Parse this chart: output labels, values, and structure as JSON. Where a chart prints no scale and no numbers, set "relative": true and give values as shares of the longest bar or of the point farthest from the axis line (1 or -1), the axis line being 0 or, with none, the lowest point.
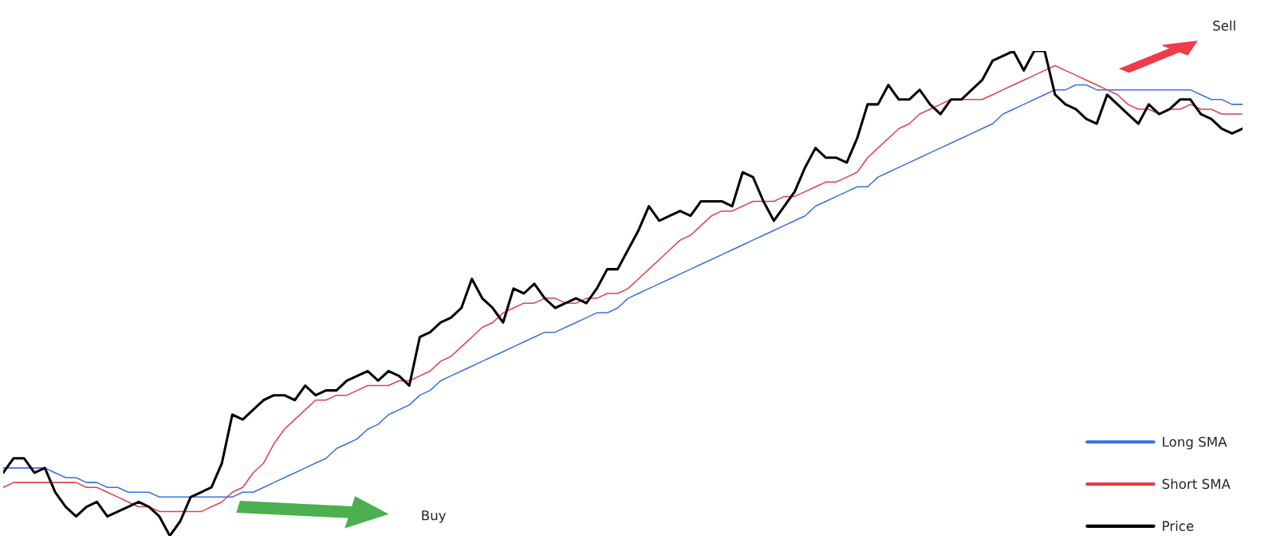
{
  "chart_data": {
    "type": "line",
    "relative": true,
    "categories": [
      null,
      null,
      null,
      null,
      null,
      null,
      null,
      null,
      null,
      null,
      null,
      null,
      null,
      null,
      null,
      null,
      null,
      null,
      null,
      null,
      null,
      null,
      null,
      null,
      null,
      null,
      null,
      null,
      null,
      null,
      null,
      null,
      null,
      null,
      null,
      null,
      null,
      null,
      null,
      null,
      null,
      null,
      null,
      null,
      null,
      null,
      null,
      null,
      null,
      null,
      null,
      null,
      null,
      null,
      null,
      null,
      null,
      null,
      null,
      null,
      null,
      null,
      null,
      null,
      null,
      null,
      null,
      null,
      null,
      null,
      null,
      null,
      null,
      null,
      null,
      null,
      null,
      null,
      null,
      null,
      null,
      null,
      null,
      null,
      null,
      null,
      null,
      null,
      null,
      null,
      null,
      null,
      null,
      null,
      null,
      null,
      null,
      null,
      null,
      null,
      null,
      null,
      null,
      null,
      null,
      null,
      null,
      null,
      null,
      null,
      null,
      null,
      null,
      null,
      null,
      null,
      null,
      null,
      null,
      null
    ],
    "series": [
      {
        "name": "Long SMA",
        "color": "#3b6fe0",
        "values": [
          0.14,
          0.14,
          0.14,
          0.14,
          0.14,
          0.13,
          0.12,
          0.12,
          0.11,
          0.11,
          0.1,
          0.1,
          0.09,
          0.09,
          0.09,
          0.08,
          0.08,
          0.08,
          0.08,
          0.08,
          0.08,
          0.08,
          0.08,
          0.09,
          0.09,
          0.1,
          0.11,
          0.12,
          0.13,
          0.14,
          0.15,
          0.16,
          0.18,
          0.19,
          0.2,
          0.22,
          0.23,
          0.25,
          0.26,
          0.27,
          0.29,
          0.3,
          0.32,
          0.33,
          0.34,
          0.35,
          0.36,
          0.37,
          0.38,
          0.39,
          0.4,
          0.41,
          0.42,
          0.42,
          0.43,
          0.44,
          0.45,
          0.46,
          0.46,
          0.47,
          0.49,
          0.5,
          0.51,
          0.52,
          0.53,
          0.54,
          0.55,
          0.56,
          0.57,
          0.58,
          0.59,
          0.6,
          0.61,
          0.62,
          0.63,
          0.64,
          0.65,
          0.66,
          0.68,
          0.69,
          0.7,
          0.71,
          0.72,
          0.72,
          0.74,
          0.75,
          0.76,
          0.77,
          0.78,
          0.79,
          0.8,
          0.81,
          0.82,
          0.83,
          0.84,
          0.85,
          0.87,
          0.88,
          0.89,
          0.9,
          0.91,
          0.92,
          0.92,
          0.93,
          0.93,
          0.92,
          0.92,
          0.92,
          0.92,
          0.92,
          0.92,
          0.92,
          0.92,
          0.92,
          0.92,
          0.91,
          0.9,
          0.9,
          0.89,
          0.89
        ]
      },
      {
        "name": "Short SMA",
        "color": "#e0404e",
        "values": [
          0.1,
          0.11,
          0.11,
          0.11,
          0.11,
          0.11,
          0.11,
          0.11,
          0.1,
          0.1,
          0.09,
          0.08,
          0.07,
          0.06,
          0.06,
          0.05,
          0.05,
          0.05,
          0.05,
          0.05,
          0.06,
          0.07,
          0.09,
          0.1,
          0.13,
          0.15,
          0.19,
          0.22,
          0.24,
          0.26,
          0.28,
          0.28,
          0.29,
          0.29,
          0.3,
          0.31,
          0.31,
          0.31,
          0.32,
          0.32,
          0.33,
          0.34,
          0.36,
          0.37,
          0.39,
          0.41,
          0.43,
          0.44,
          0.46,
          0.47,
          0.48,
          0.48,
          0.49,
          0.49,
          0.48,
          0.48,
          0.49,
          0.49,
          0.5,
          0.5,
          0.51,
          0.53,
          0.55,
          0.57,
          0.59,
          0.61,
          0.62,
          0.64,
          0.66,
          0.67,
          0.67,
          0.68,
          0.69,
          0.69,
          0.69,
          0.7,
          0.7,
          0.71,
          0.72,
          0.73,
          0.73,
          0.74,
          0.75,
          0.78,
          0.8,
          0.82,
          0.84,
          0.85,
          0.87,
          0.88,
          0.89,
          0.9,
          0.9,
          0.9,
          0.9,
          0.91,
          0.92,
          0.93,
          0.94,
          0.95,
          0.96,
          0.97,
          0.96,
          0.95,
          0.94,
          0.93,
          0.92,
          0.91,
          0.89,
          0.88,
          0.88,
          0.87,
          0.88,
          0.88,
          0.89,
          0.88,
          0.88,
          0.87,
          0.87,
          0.87
        ]
      },
      {
        "name": "Price",
        "color": "#000000",
        "values": [
          0.13,
          0.16,
          0.16,
          0.13,
          0.14,
          0.09,
          0.06,
          0.04,
          0.06,
          0.07,
          0.04,
          0.05,
          0.06,
          0.07,
          0.06,
          0.04,
          0.0,
          0.03,
          0.08,
          0.09,
          0.1,
          0.15,
          0.25,
          0.24,
          0.26,
          0.28,
          0.29,
          0.29,
          0.28,
          0.31,
          0.29,
          0.3,
          0.3,
          0.32,
          0.33,
          0.34,
          0.32,
          0.34,
          0.33,
          0.31,
          0.41,
          0.42,
          0.44,
          0.45,
          0.47,
          0.53,
          0.49,
          0.47,
          0.44,
          0.51,
          0.5,
          0.52,
          0.49,
          0.47,
          0.48,
          0.49,
          0.48,
          0.51,
          0.55,
          0.55,
          0.59,
          0.63,
          0.68,
          0.65,
          0.66,
          0.67,
          0.66,
          0.69,
          0.69,
          0.69,
          0.68,
          0.75,
          0.74,
          0.69,
          0.65,
          0.68,
          0.71,
          0.76,
          0.8,
          0.78,
          0.78,
          0.77,
          0.82,
          0.89,
          0.89,
          0.93,
          0.9,
          0.9,
          0.92,
          0.89,
          0.87,
          0.9,
          0.9,
          0.92,
          0.94,
          0.98,
          0.99,
          1.0,
          0.96,
          1.0,
          1.0,
          0.91,
          0.89,
          0.88,
          0.86,
          0.85,
          0.91,
          0.89,
          0.87,
          0.85,
          0.89,
          0.87,
          0.88,
          0.9,
          0.9,
          0.87,
          0.86,
          0.84,
          0.83,
          0.84
        ]
      }
    ],
    "annotations": [
      "Buy",
      "Sell"
    ],
    "legend": "bottom right",
    "marker": "none",
    "line_style": "solid",
    "tick_labels": false
  }
}
